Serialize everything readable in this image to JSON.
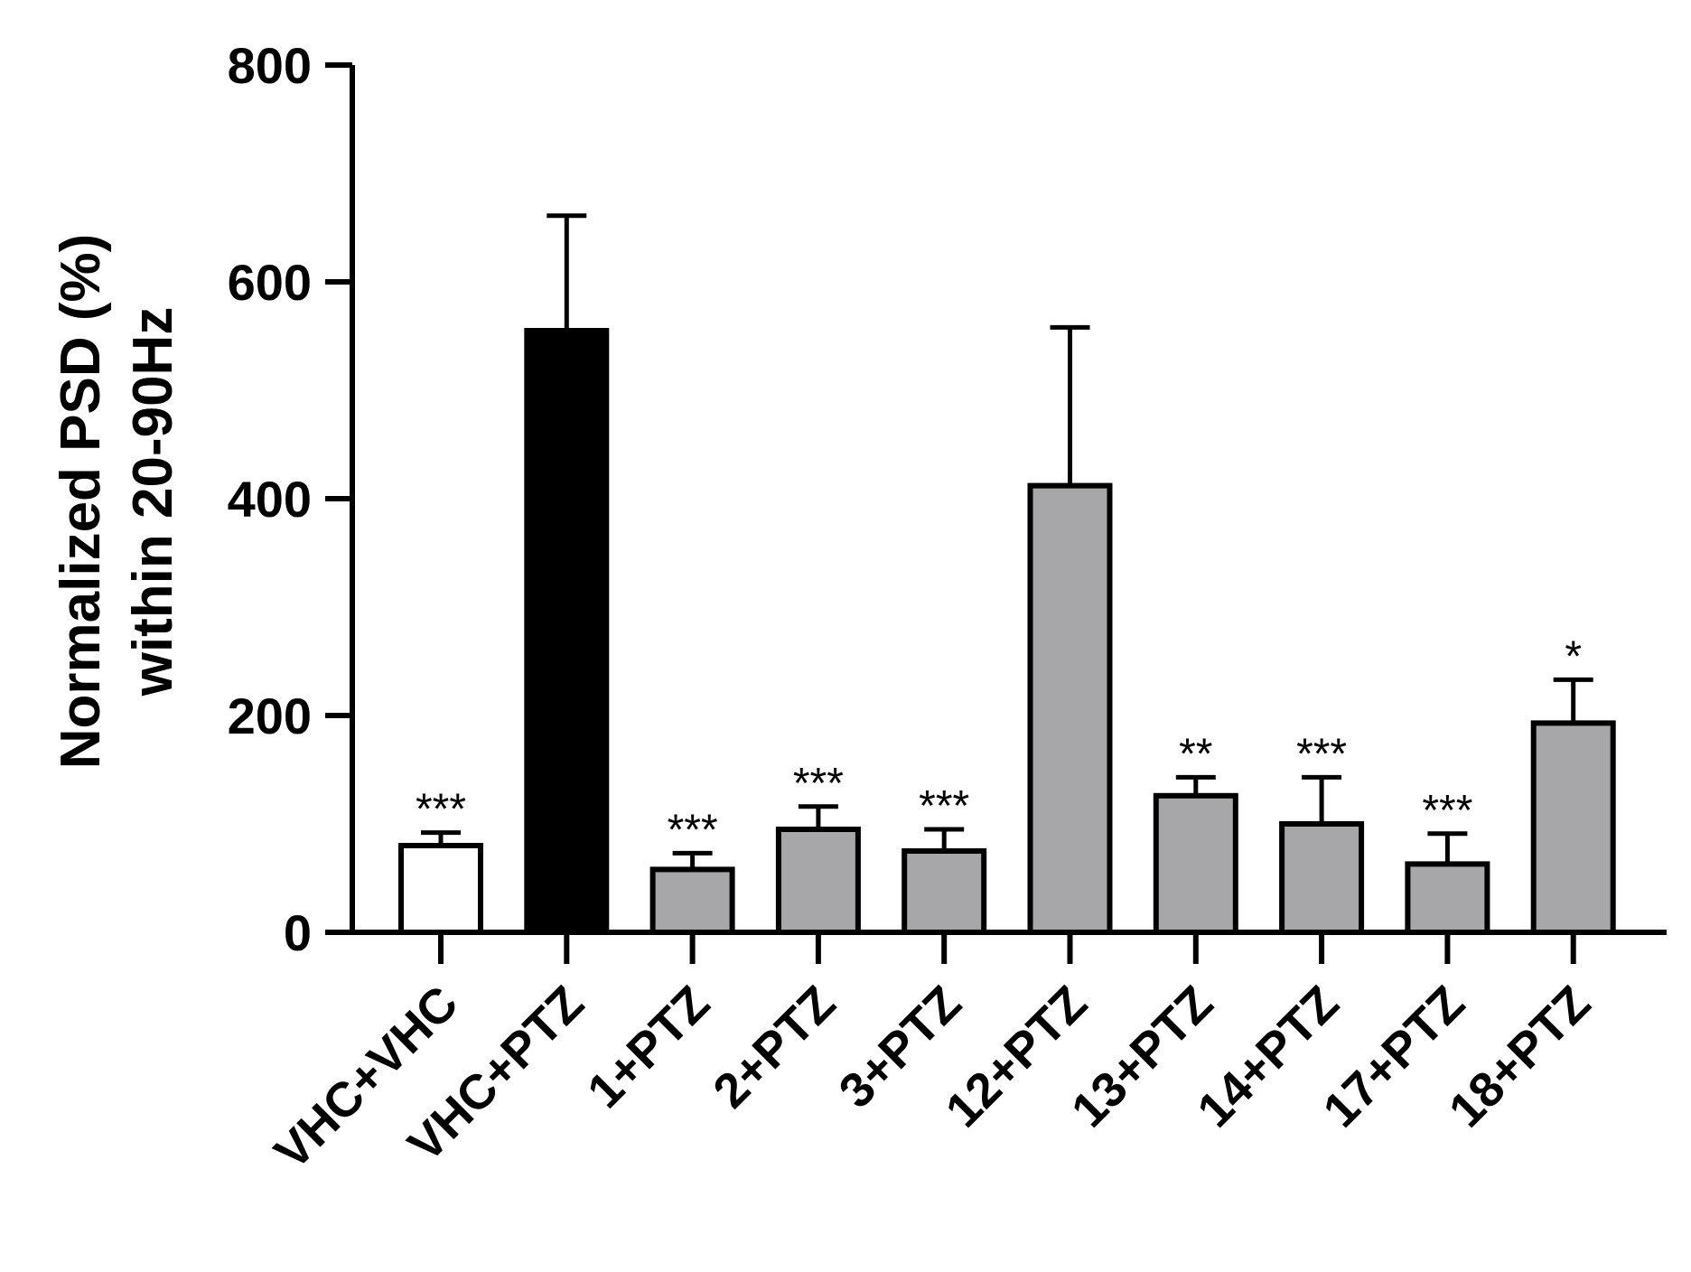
{
  "chart_data": {
    "type": "bar",
    "categories": [
      "VHC+VHC",
      "VHC+PTZ",
      "1+PTZ",
      "2+PTZ",
      "3+PTZ",
      "12+PTZ",
      "13+PTZ",
      "14+PTZ",
      "17+PTZ",
      "18+PTZ"
    ],
    "values": [
      80,
      555,
      58,
      95,
      75,
      412,
      126,
      100,
      63,
      193
    ],
    "errors": [
      12,
      106,
      15,
      21,
      20,
      146,
      17,
      43,
      28,
      40
    ],
    "significance": [
      "***",
      "",
      "***",
      "***",
      "***",
      "",
      "**",
      "***",
      "***",
      "*"
    ],
    "bar_colors": [
      "#ffffff",
      "#000000",
      "#a7a7aa",
      "#a7a7aa",
      "#a7a7aa",
      "#a7a7aa",
      "#a7a7aa",
      "#a7a7aa",
      "#a7a7aa",
      "#a7a7aa"
    ],
    "ylabel_lines": [
      "Normalized PSD (%)",
      "within 20-90Hz"
    ],
    "xlabel": "",
    "ylim": [
      0,
      800
    ],
    "yticks": [
      0,
      200,
      400,
      600,
      800
    ],
    "grid": false,
    "legend": "none"
  }
}
